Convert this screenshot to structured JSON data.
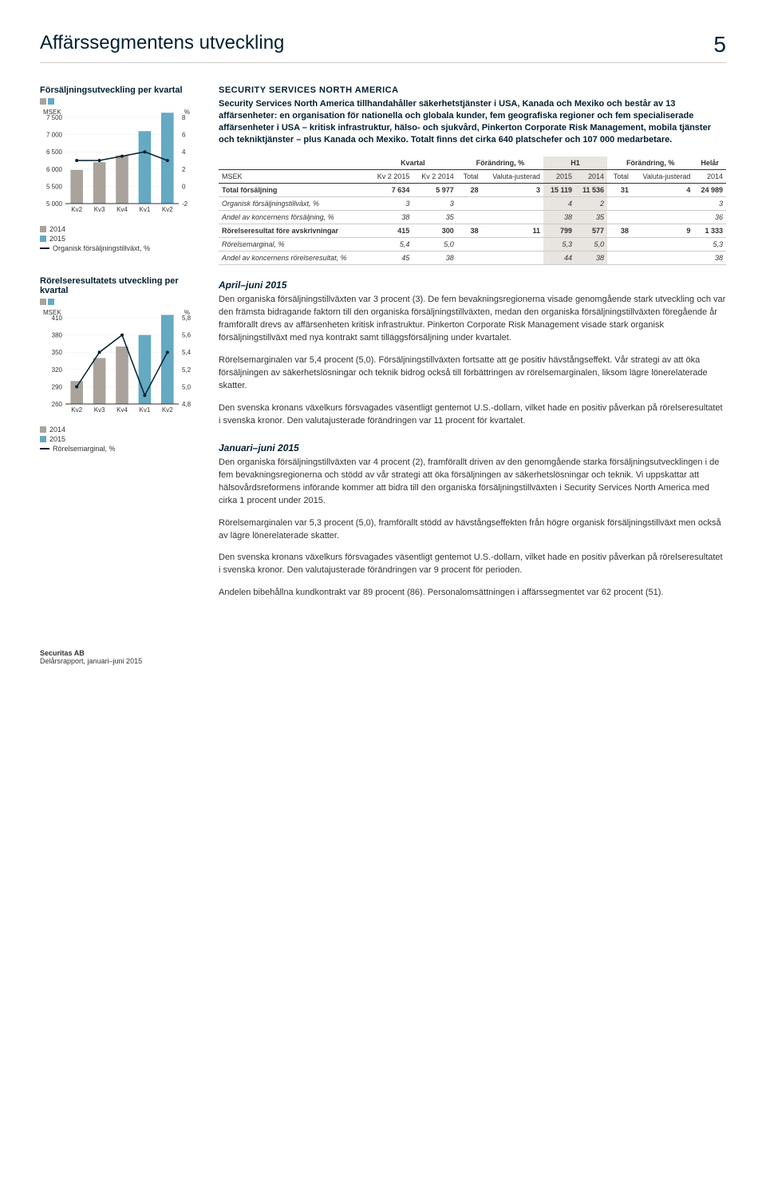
{
  "header": {
    "title": "Affärssegmentens utveckling",
    "page": "5"
  },
  "chart1": {
    "title": "Försäljningsutveckling per kvartal",
    "type": "bar-line",
    "left_unit": "MSEK",
    "right_unit": "%",
    "categories": [
      "Kv2",
      "Kv3",
      "Kv4",
      "Kv1",
      "Kv2"
    ],
    "bars_2014": [
      5977,
      6200,
      6400,
      0,
      0
    ],
    "bars_2015": [
      0,
      0,
      0,
      7100,
      7634
    ],
    "line": [
      3,
      3,
      3.5,
      4,
      3
    ],
    "ymin": 5000,
    "ymax": 7500,
    "ystep": 500,
    "rmin": -2,
    "rmax": 8,
    "rstep": 2,
    "color_2014": "#a9a39c",
    "color_2015": "#65a9c2",
    "line_color": "#031f30",
    "legend": [
      "2014",
      "2015",
      "Organisk försäljningstillväxt, %"
    ]
  },
  "chart2": {
    "title": "Rörelseresultatets utveckling per kvartal",
    "type": "bar-line",
    "left_unit": "MSEK",
    "right_unit": "%",
    "categories": [
      "Kv2",
      "Kv3",
      "Kv4",
      "Kv1",
      "Kv2"
    ],
    "bars_2014": [
      300,
      340,
      360,
      0,
      0
    ],
    "bars_2015": [
      0,
      0,
      0,
      380,
      415
    ],
    "line": [
      5.0,
      5.4,
      5.6,
      4.9,
      5.4
    ],
    "ymin": 260,
    "ymax": 410,
    "ystep": 30,
    "rmin": 4.8,
    "rmax": 5.8,
    "rstep": 0.2,
    "color_2014": "#a9a39c",
    "color_2015": "#65a9c2",
    "line_color": "#031f30",
    "legend": [
      "2014",
      "2015",
      "Rörelsemarginal, %"
    ]
  },
  "section": {
    "head": "SECURITY SERVICES NORTH AMERICA",
    "intro": "Security Services North America tillhandahåller säkerhetstjänster i USA, Kanada och Mexiko och består av 13 affärsenheter: en organisation för nationella och globala kunder, fem geografiska regioner och fem specialiserade affärsenheter i USA – kritisk infrastruktur, hälso- och sjukvård, Pinkerton Corporate Risk Management, mobila tjänster och tekniktjänster – plus Kanada och Mexiko. Totalt finns det cirka 640 platschefer och 107 000 medarbetare."
  },
  "table": {
    "head_top": [
      "",
      "Kvartal",
      "Förändring, %",
      "H1",
      "Förändring, %",
      "Helår"
    ],
    "head_sub": [
      "MSEK",
      "Kv 2 2015",
      "Kv 2 2014",
      "Total",
      "Valuta-justerad",
      "2015",
      "2014",
      "Total",
      "Valuta-justerad",
      "2014"
    ],
    "rows": [
      {
        "label": "Total försäljning",
        "cells": [
          "7 634",
          "5 977",
          "28",
          "3",
          "15 119",
          "11 536",
          "31",
          "4",
          "24 989"
        ],
        "bold": true
      },
      {
        "label": "Organisk försäljningstillväxt, %",
        "cells": [
          "3",
          "3",
          "",
          "",
          "4",
          "2",
          "",
          "",
          "3"
        ],
        "italic": true
      },
      {
        "label": "Andel av koncernens försäljning, %",
        "cells": [
          "38",
          "35",
          "",
          "",
          "38",
          "35",
          "",
          "",
          "36"
        ],
        "italic": true
      },
      {
        "label": "Rörelseresultat före avskrivningar",
        "cells": [
          "415",
          "300",
          "38",
          "11",
          "799",
          "577",
          "38",
          "9",
          "1 333"
        ],
        "bold": true
      },
      {
        "label": "Rörelsemarginal, %",
        "cells": [
          "5,4",
          "5,0",
          "",
          "",
          "5,3",
          "5,0",
          "",
          "",
          "5,3"
        ],
        "italic": true
      },
      {
        "label": "Andel av koncernens rörelseresultat, %",
        "cells": [
          "45",
          "38",
          "",
          "",
          "44",
          "38",
          "",
          "",
          "38"
        ],
        "italic": true
      }
    ]
  },
  "body": {
    "h_apr": "April–juni 2015",
    "p1": "Den organiska försäljningstillväxten var 3 procent (3). De fem bevakningsregionerna visade genomgående stark utveckling och var den främsta bidragande faktorn till den organiska försäljningstillväxten, medan den organiska försäljningstillväxten föregående år framförallt drevs av affärsenheten kritisk infrastruktur. Pinkerton Corporate Risk Management visade stark organisk försäljningstillväxt med nya kontrakt samt tilläggsförsäljning under kvartalet.",
    "p2": "Rörelsemarginalen var 5,4 procent (5,0). Försäljningstillväxten fortsatte att ge positiv hävstångseffekt. Vår strategi av att öka försäljningen av säkerhetslösningar och teknik bidrog också till förbättringen av rörelsemarginalen, liksom lägre lönerelaterade skatter.",
    "p3": "Den svenska kronans växelkurs försvagades väsentligt gentemot U.S.-dollarn, vilket hade en positiv påverkan på rörelseresultatet i svenska kronor. Den valutajusterade förändringen var 11 procent för kvartalet.",
    "h_jan": "Januari–juni 2015",
    "p4": "Den organiska försäljningstillväxten var 4 procent (2), framförallt driven av den genomgående starka försäljningsutvecklingen i de fem bevakningsregionerna och stödd av vår strategi att öka försäljningen av säkerhetslösningar och teknik. Vi uppskattar att hälsovårdsreformens införande kommer att bidra till den organiska försäljningstillväxten i Security Services North America med cirka 1 procent under 2015.",
    "p5": "Rörelsemarginalen var 5,3 procent (5,0), framförallt stödd av hävstångseffekten från högre organisk försäljningstillväxt men också av lägre lönerelaterade skatter.",
    "p6": "Den svenska kronans växelkurs försvagades väsentligt gentemot U.S.-dollarn, vilket hade en positiv påverkan på rörelseresultatet i svenska kronor. Den valutajusterade förändringen var 9 procent för perioden.",
    "p7": "Andelen bibehållna kundkontrakt var 89 procent (86). Personalomsättningen i affärssegmentet var 62 procent (51)."
  },
  "footer": {
    "company": "Securitas AB",
    "sub": "Delårsrapport, januari–juni 2015"
  }
}
